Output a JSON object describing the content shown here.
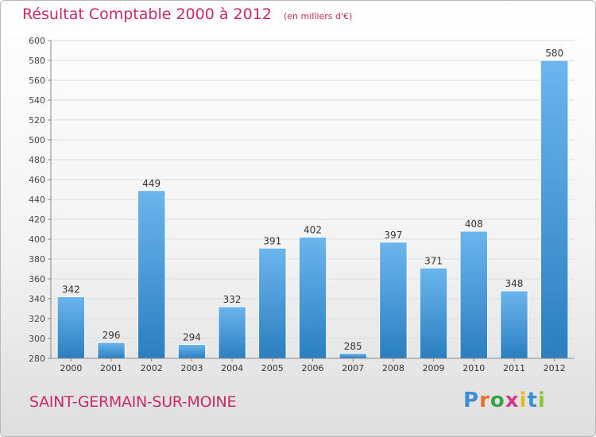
{
  "header": {
    "title": "Résultat Comptable 2000 à 2012",
    "unit": "(en milliers d'€)"
  },
  "commune": "SAINT-GERMAIN-SUR-MOINE",
  "logo": {
    "text": "Proxiti",
    "letters": [
      "P",
      "r",
      "o",
      "x",
      "i",
      "t",
      "i"
    ],
    "colors": [
      "#3b8fd4",
      "#e8702a",
      "#3aa545",
      "#d83a8a",
      "#e8b81f",
      "#3b8fd4",
      "#8cc63f"
    ]
  },
  "colors": {
    "bar_light": "#6cb5ee",
    "bar_dark": "#2a7fc0",
    "title": "#c72a6a",
    "grid": "#dcdcdc"
  },
  "chart_data": {
    "type": "bar",
    "title": "Résultat Comptable 2000 à 2012",
    "ylabel": "en milliers d'€",
    "xlabel": "",
    "categories": [
      "2000",
      "2001",
      "2002",
      "2003",
      "2004",
      "2005",
      "2006",
      "2007",
      "2008",
      "2009",
      "2010",
      "2011",
      "2012"
    ],
    "values": [
      342,
      296,
      449,
      294,
      332,
      391,
      402,
      285,
      397,
      371,
      408,
      348,
      580
    ],
    "ylim": [
      280,
      600
    ],
    "ytick_step": 20,
    "grid": true
  }
}
